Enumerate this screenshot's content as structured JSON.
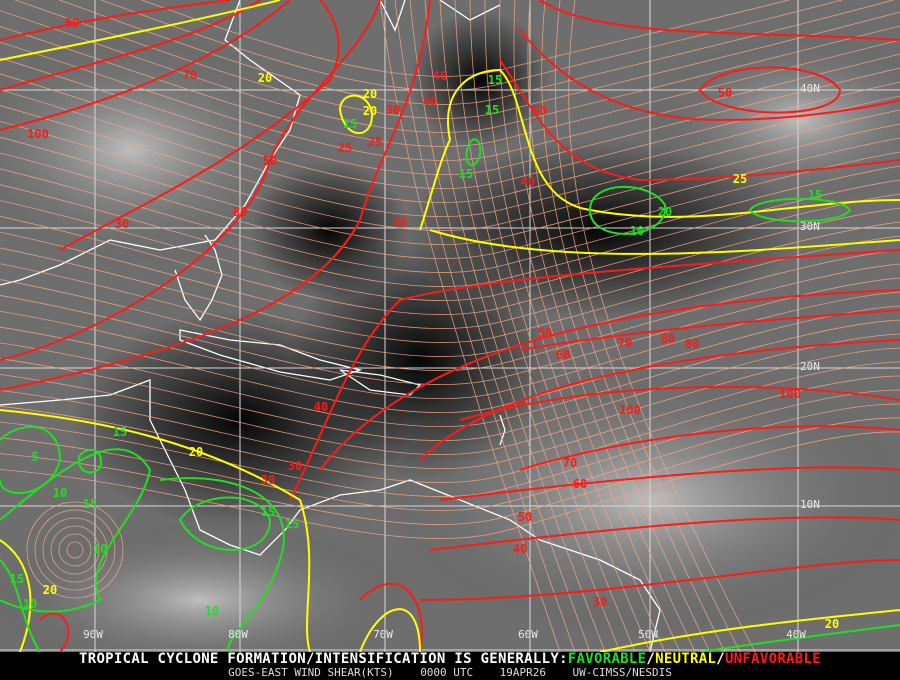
{
  "map": {
    "grid_labels": {
      "lon": [
        "90W",
        "80W",
        "70W",
        "60W",
        "50W",
        "40W"
      ],
      "lat": [
        "40N",
        "30N",
        "20N",
        "10N"
      ]
    },
    "colors": {
      "favorable": "#22dd22",
      "neutral": "#ffff00",
      "unfavorable": "#ff1a1a",
      "streamlines": "#f4a882",
      "coastline": "#ffffff"
    },
    "contour_labels": [
      "90",
      "100",
      "70",
      "80",
      "50",
      "20",
      "40",
      "30",
      "20",
      "15",
      "25",
      "30",
      "40",
      "15",
      "15",
      "30",
      "25",
      "20",
      "15",
      "10",
      "15",
      "50",
      "60",
      "70",
      "80",
      "80",
      "50",
      "60",
      "30",
      "40",
      "100",
      "100",
      "70",
      "60",
      "50",
      "40",
      "30",
      "20",
      "15",
      "5",
      "10",
      "10",
      "15",
      "15",
      "10",
      "30",
      "20",
      "15",
      "10",
      "20",
      "20",
      "15",
      "25",
      "40"
    ]
  },
  "footer": {
    "headline_prefix": "TROPICAL CYCLONE FORMATION/INTENSIFICATION IS GENERALLY:",
    "favorable": "FAVORABLE",
    "sep1": "/",
    "neutral": "NEUTRAL",
    "sep2": "/",
    "unfavorable": "UNFAVORABLE",
    "product": "GOES-EAST WIND SHEAR(KTS)",
    "time": "0000 UTC",
    "date": "19APR26",
    "source": "UW-CIMSS/NESDIS"
  }
}
